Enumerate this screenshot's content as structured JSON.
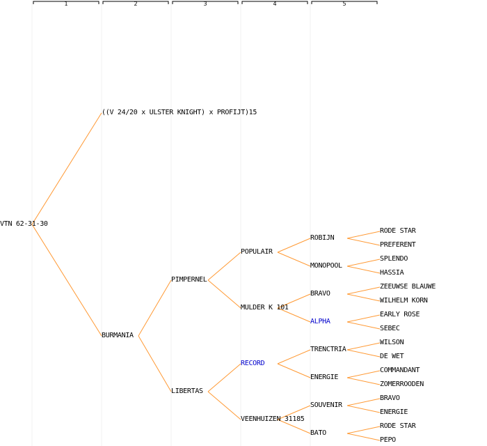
{
  "colors": {
    "edge": "#ff9933",
    "link": "#0000cc",
    "column_line": "#f0f0f0",
    "text": "#000000"
  },
  "generations": [
    "1",
    "2",
    "3",
    "4",
    "5"
  ],
  "pedigree": {
    "name": "VTN 62-31-30",
    "children": [
      {
        "name": "((V 24/20 x ULSTER KNIGHT) x PROFIJT)15",
        "children": []
      },
      {
        "name": "BURMANIA",
        "children": [
          {
            "name": "PIMPERNEL",
            "children": [
              {
                "name": "POPULAIR",
                "children": [
                  {
                    "name": "ROBIJN",
                    "children": [
                      {
                        "name": "RODE STAR"
                      },
                      {
                        "name": "PREFERENT"
                      }
                    ]
                  },
                  {
                    "name": "MONOPOOL",
                    "children": [
                      {
                        "name": "SPLENDO"
                      },
                      {
                        "name": "HASSIA"
                      }
                    ]
                  }
                ]
              },
              {
                "name": "MULDER K 101",
                "children": [
                  {
                    "name": "BRAVO",
                    "children": [
                      {
                        "name": "ZEEUWSE BLAUWE"
                      },
                      {
                        "name": "WILHELM KORN"
                      }
                    ]
                  },
                  {
                    "name": "ALPHA",
                    "link": true,
                    "children": [
                      {
                        "name": "EARLY ROSE"
                      },
                      {
                        "name": "SEBEC"
                      }
                    ]
                  }
                ]
              }
            ]
          },
          {
            "name": "LIBERTAS",
            "children": [
              {
                "name": "RECORD",
                "link": true,
                "children": [
                  {
                    "name": "TRENCTRIA",
                    "children": [
                      {
                        "name": "WILSON"
                      },
                      {
                        "name": "DE WET"
                      }
                    ]
                  },
                  {
                    "name": "ENERGIE",
                    "children": [
                      {
                        "name": "COMMANDANT"
                      },
                      {
                        "name": "ZOMERROODEN"
                      }
                    ]
                  }
                ]
              },
              {
                "name": "VEENHUIZEN 31185",
                "children": [
                  {
                    "name": "SOUVENIR",
                    "children": [
                      {
                        "name": "BRAVO"
                      },
                      {
                        "name": "ENERGIE"
                      }
                    ]
                  },
                  {
                    "name": "BATO",
                    "children": [
                      {
                        "name": "RODE STAR"
                      },
                      {
                        "name": "PEPO"
                      }
                    ]
                  }
                ]
              }
            ]
          }
        ]
      }
    ]
  }
}
